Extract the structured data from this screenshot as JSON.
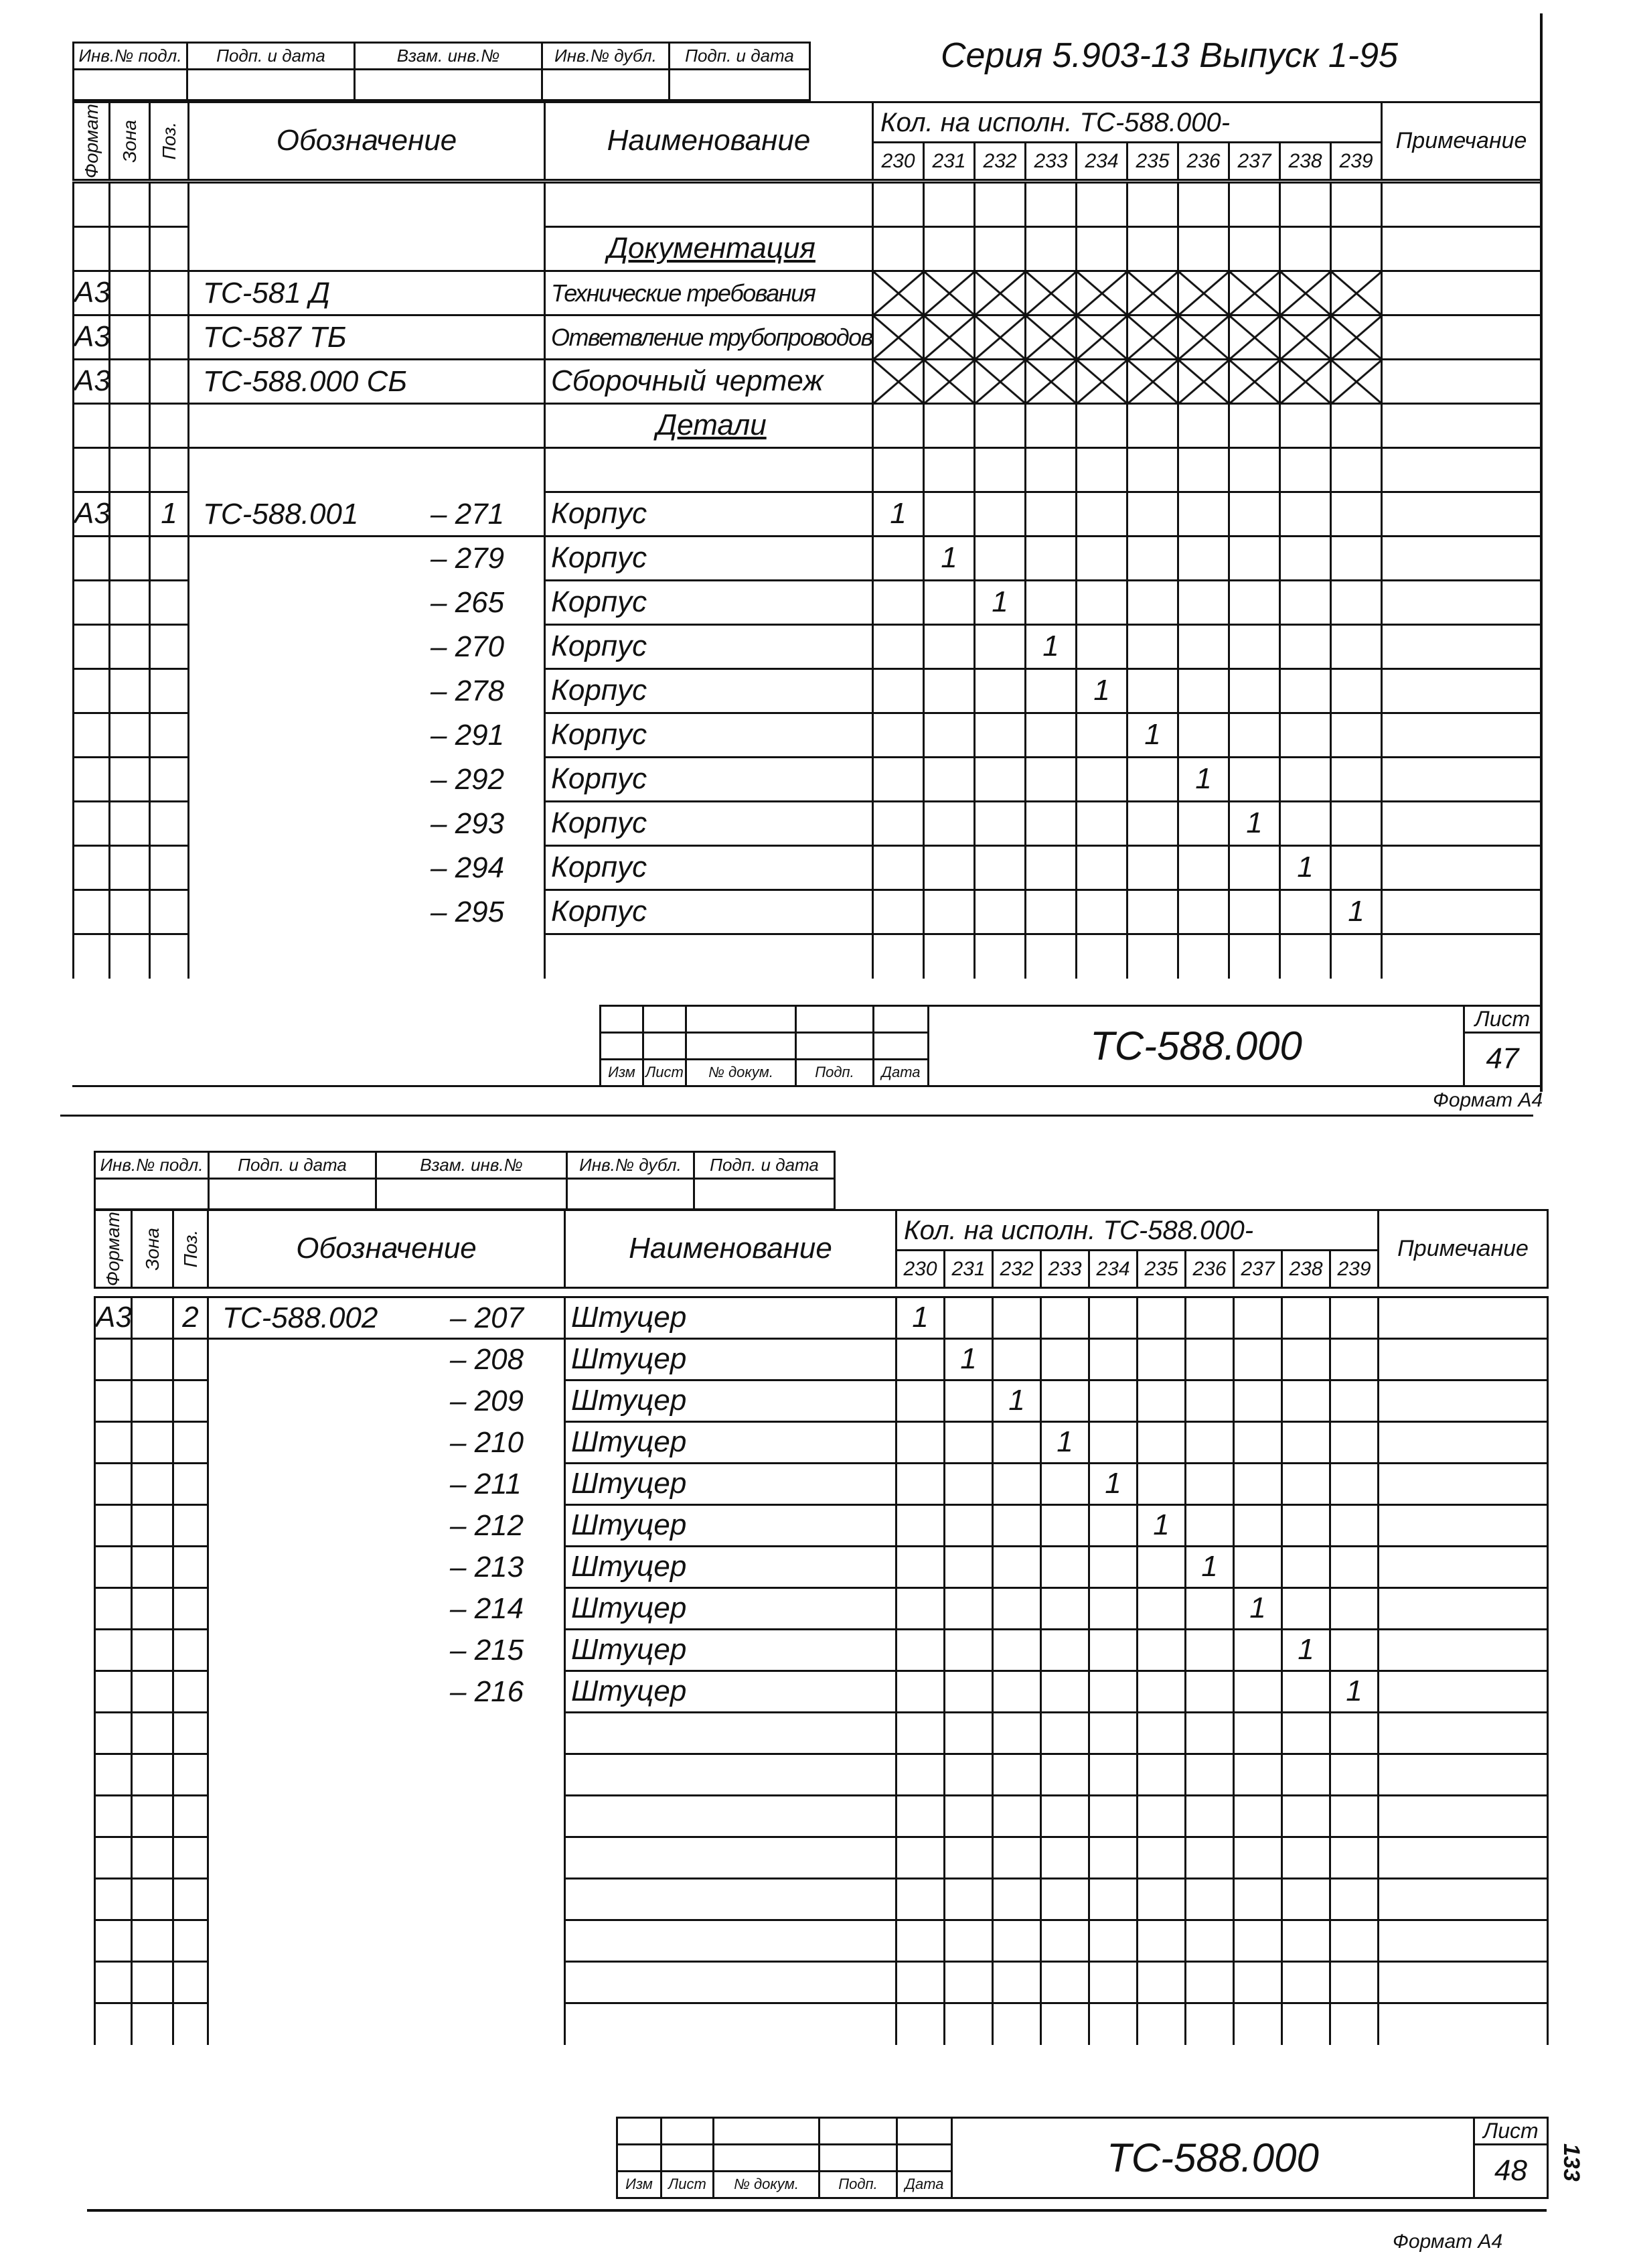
{
  "series_title": "Серия 5.903-13 Выпуск 1-95",
  "stamp_labels_1": [
    "Инв.№ подл.",
    "Подп. и дата",
    "Взам. инв.№",
    "Инв.№ дубл.",
    "Подп. и дата"
  ],
  "stamp_labels_2": [
    "Инв.№ подл.",
    "Подп. и дата",
    "Взам. инв.№",
    "Инв.№ дубл.",
    "Подп. и дата"
  ],
  "headers": {
    "format": "Формат",
    "zone": "Зона",
    "pos": "Поз.",
    "designation": "Обозначение",
    "name": "Наименование",
    "qty_title": "Кол. на исполн. ТС-588.000-",
    "qty_cols": [
      "230",
      "231",
      "232",
      "233",
      "234",
      "235",
      "236",
      "237",
      "238",
      "239"
    ],
    "note": "Примечание"
  },
  "sheet1": {
    "rows": [
      {
        "format": "",
        "pos": "",
        "designation": "",
        "suffix": "",
        "name": "",
        "qty": null
      },
      {
        "format": "",
        "pos": "",
        "designation": "",
        "suffix": "",
        "name": "Документация",
        "section": true,
        "qty": null
      },
      {
        "format": "А3",
        "pos": "",
        "designation": "ТС-581 Д",
        "suffix": "",
        "name": "Технические требования",
        "qty": "cross"
      },
      {
        "format": "А3",
        "pos": "",
        "designation": "ТС-587 ТБ",
        "suffix": "",
        "name": "Ответвление трубопроводов",
        "qty": "cross"
      },
      {
        "format": "А3",
        "pos": "",
        "designation": "ТС-588.000 СБ",
        "suffix": "",
        "name": "Сборочный чертеж",
        "qty": "cross"
      },
      {
        "format": "",
        "pos": "",
        "designation": "",
        "suffix": "",
        "name": "Детали",
        "section": true,
        "qty": null
      },
      {
        "format": "",
        "pos": "",
        "designation": "",
        "suffix": "",
        "name": "",
        "qty": null
      },
      {
        "format": "А3",
        "pos": "1",
        "designation": "ТС-588.001",
        "suffix": "– 271",
        "name": "Корпус",
        "qty": 0,
        "value": "1"
      },
      {
        "format": "",
        "pos": "",
        "designation": "",
        "suffix": "– 279",
        "name": "Корпус",
        "qty": 1,
        "value": "1"
      },
      {
        "format": "",
        "pos": "",
        "designation": "",
        "suffix": "– 265",
        "name": "Корпус",
        "qty": 2,
        "value": "1"
      },
      {
        "format": "",
        "pos": "",
        "designation": "",
        "suffix": "– 270",
        "name": "Корпус",
        "qty": 3,
        "value": "1"
      },
      {
        "format": "",
        "pos": "",
        "designation": "",
        "suffix": "– 278",
        "name": "Корпус",
        "qty": 4,
        "value": "1"
      },
      {
        "format": "",
        "pos": "",
        "designation": "",
        "suffix": "– 291",
        "name": "Корпус",
        "qty": 5,
        "value": "1"
      },
      {
        "format": "",
        "pos": "",
        "designation": "",
        "suffix": "– 292",
        "name": "Корпус",
        "qty": 6,
        "value": "1"
      },
      {
        "format": "",
        "pos": "",
        "designation": "",
        "suffix": "– 293",
        "name": "Корпус",
        "qty": 7,
        "value": "1"
      },
      {
        "format": "",
        "pos": "",
        "designation": "",
        "suffix": "– 294",
        "name": "Корпус",
        "qty": 8,
        "value": "1"
      },
      {
        "format": "",
        "pos": "",
        "designation": "",
        "suffix": "– 295",
        "name": "Корпус",
        "qty": 9,
        "value": "1"
      },
      {
        "format": "",
        "pos": "",
        "designation": "",
        "suffix": "",
        "name": "",
        "qty": null,
        "open": true
      }
    ],
    "title_block": {
      "labels": [
        "Изм",
        "Лист",
        "№ докум.",
        "Подп.",
        "Дата"
      ],
      "doc": "ТС-588.000",
      "sheet_label": "Лист",
      "sheet_no": "47"
    },
    "format_label": "Формат А4"
  },
  "sheet2": {
    "rows": [
      {
        "format": "А3",
        "pos": "2",
        "designation": "ТС-588.002",
        "suffix": "– 207",
        "name": "Штуцер",
        "qty": 0,
        "value": "1"
      },
      {
        "format": "",
        "pos": "",
        "designation": "",
        "suffix": "– 208",
        "name": "Штуцер",
        "qty": 1,
        "value": "1"
      },
      {
        "format": "",
        "pos": "",
        "designation": "",
        "suffix": "– 209",
        "name": "Штуцер",
        "qty": 2,
        "value": "1"
      },
      {
        "format": "",
        "pos": "",
        "designation": "",
        "suffix": "– 210",
        "name": "Штуцер",
        "qty": 3,
        "value": "1"
      },
      {
        "format": "",
        "pos": "",
        "designation": "",
        "suffix": "– 211",
        "name": "Штуцер",
        "qty": 4,
        "value": "1"
      },
      {
        "format": "",
        "pos": "",
        "designation": "",
        "suffix": "– 212",
        "name": "Штуцер",
        "qty": 5,
        "value": "1"
      },
      {
        "format": "",
        "pos": "",
        "designation": "",
        "suffix": "– 213",
        "name": "Штуцер",
        "qty": 6,
        "value": "1"
      },
      {
        "format": "",
        "pos": "",
        "designation": "",
        "suffix": "– 214",
        "name": "Штуцер",
        "qty": 7,
        "value": "1"
      },
      {
        "format": "",
        "pos": "",
        "designation": "",
        "suffix": "– 215",
        "name": "Штуцер",
        "qty": 8,
        "value": "1"
      },
      {
        "format": "",
        "pos": "",
        "designation": "",
        "suffix": "– 216",
        "name": "Штуцер",
        "qty": 9,
        "value": "1"
      },
      {
        "format": "",
        "pos": "",
        "designation": "",
        "suffix": "",
        "name": "",
        "qty": null
      },
      {
        "format": "",
        "pos": "",
        "designation": "",
        "suffix": "",
        "name": "",
        "qty": null
      },
      {
        "format": "",
        "pos": "",
        "designation": "",
        "suffix": "",
        "name": "",
        "qty": null
      },
      {
        "format": "",
        "pos": "",
        "designation": "",
        "suffix": "",
        "name": "",
        "qty": null
      },
      {
        "format": "",
        "pos": "",
        "designation": "",
        "suffix": "",
        "name": "",
        "qty": null
      },
      {
        "format": "",
        "pos": "",
        "designation": "",
        "suffix": "",
        "name": "",
        "qty": null
      },
      {
        "format": "",
        "pos": "",
        "designation": "",
        "suffix": "",
        "name": "",
        "qty": null
      },
      {
        "format": "",
        "pos": "",
        "designation": "",
        "suffix": "",
        "name": "",
        "qty": null,
        "open": true
      }
    ],
    "title_block": {
      "labels": [
        "Изм",
        "Лист",
        "№ докум.",
        "Подп.",
        "Дата"
      ],
      "doc": "ТС-588.000",
      "sheet_label": "Лист",
      "sheet_no": "48"
    },
    "format_label": "Формат А4",
    "page_mark": "133"
  }
}
